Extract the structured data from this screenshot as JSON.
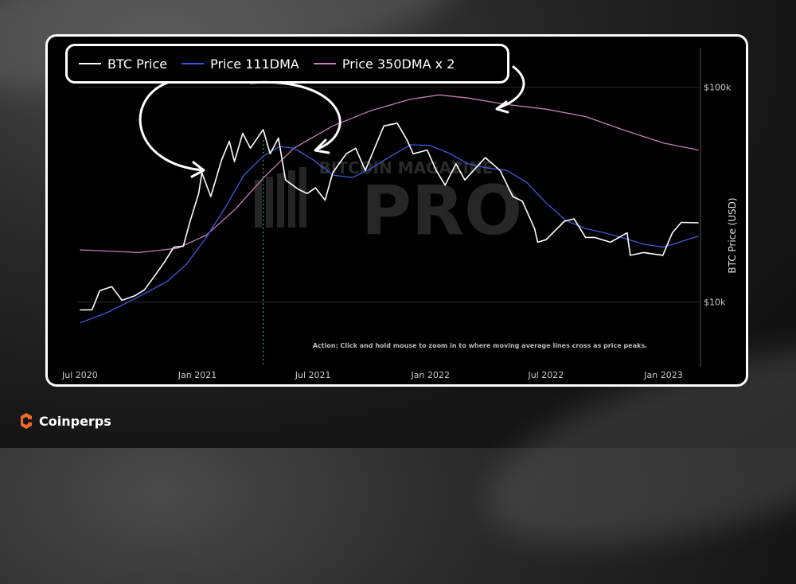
{
  "brand": {
    "name": "Coinperps",
    "color": "#f26a2b"
  },
  "legend": [
    {
      "label": "BTC Price",
      "color": "#ffffff"
    },
    {
      "label": "Price 111DMA",
      "color": "#3b5bdb"
    },
    {
      "label": "Price 350DMA x 2",
      "color": "#c77dba"
    }
  ],
  "watermark": {
    "line1": "BITCOIN MAGAZINE",
    "line2": "PRO"
  },
  "annotation": "Action: Click and hold mouse to zoom in to where moving average lines cross as price peaks.",
  "chart_data": {
    "type": "line",
    "title": "",
    "xlabel": "",
    "ylabel": "BTC Price (USD)",
    "y_scale": "log",
    "ylim": [
      5000,
      150000
    ],
    "xlim": [
      "2020-06-28",
      "2023-02-28"
    ],
    "x_ticks": [
      "Jul 2020",
      "Jan 2021",
      "Jul 2021",
      "Jan 2022",
      "Jul 2022",
      "Jan 2023"
    ],
    "y_ticks": [
      "$10k",
      "$100k"
    ],
    "grid": true,
    "marker_date": "2021-04-14",
    "series": [
      {
        "name": "BTC Price",
        "color": "#ffffff",
        "points": [
          [
            "2020-07-01",
            9200
          ],
          [
            "2020-07-20",
            9200
          ],
          [
            "2020-08-01",
            11300
          ],
          [
            "2020-08-20",
            11800
          ],
          [
            "2020-09-05",
            10200
          ],
          [
            "2020-09-25",
            10700
          ],
          [
            "2020-10-10",
            11400
          ],
          [
            "2020-10-25",
            13100
          ],
          [
            "2020-11-10",
            15300
          ],
          [
            "2020-11-25",
            18000
          ],
          [
            "2020-12-10",
            18200
          ],
          [
            "2020-12-20",
            23500
          ],
          [
            "2021-01-03",
            32000
          ],
          [
            "2021-01-08",
            40000
          ],
          [
            "2021-01-22",
            31000
          ],
          [
            "2021-02-08",
            46000
          ],
          [
            "2021-02-20",
            56000
          ],
          [
            "2021-02-28",
            45000
          ],
          [
            "2021-03-13",
            61000
          ],
          [
            "2021-03-25",
            52000
          ],
          [
            "2021-04-14",
            63500
          ],
          [
            "2021-04-25",
            49000
          ],
          [
            "2021-05-08",
            58000
          ],
          [
            "2021-05-19",
            37000
          ],
          [
            "2021-06-08",
            33500
          ],
          [
            "2021-06-22",
            32000
          ],
          [
            "2021-07-05",
            34000
          ],
          [
            "2021-07-20",
            29800
          ],
          [
            "2021-08-01",
            40000
          ],
          [
            "2021-08-22",
            49000
          ],
          [
            "2021-09-06",
            52000
          ],
          [
            "2021-09-21",
            41000
          ],
          [
            "2021-10-10",
            56000
          ],
          [
            "2021-10-20",
            66000
          ],
          [
            "2021-11-10",
            68000
          ],
          [
            "2021-11-25",
            57000
          ],
          [
            "2021-12-05",
            49000
          ],
          [
            "2021-12-27",
            51000
          ],
          [
            "2022-01-10",
            41000
          ],
          [
            "2022-01-24",
            35000
          ],
          [
            "2022-02-10",
            44000
          ],
          [
            "2022-02-24",
            37000
          ],
          [
            "2022-03-28",
            47000
          ],
          [
            "2022-04-20",
            41000
          ],
          [
            "2022-05-10",
            31000
          ],
          [
            "2022-05-25",
            29500
          ],
          [
            "2022-06-13",
            22000
          ],
          [
            "2022-06-18",
            19000
          ],
          [
            "2022-07-01",
            19500
          ],
          [
            "2022-07-30",
            23800
          ],
          [
            "2022-08-14",
            24400
          ],
          [
            "2022-09-01",
            20000
          ],
          [
            "2022-09-15",
            20000
          ],
          [
            "2022-10-10",
            19000
          ],
          [
            "2022-11-05",
            21000
          ],
          [
            "2022-11-10",
            16500
          ],
          [
            "2022-12-01",
            17000
          ],
          [
            "2022-12-31",
            16500
          ],
          [
            "2023-01-15",
            21000
          ],
          [
            "2023-01-29",
            23500
          ],
          [
            "2023-02-25",
            23400
          ]
        ]
      },
      {
        "name": "Price 111DMA",
        "color": "#3b5bdb",
        "points": [
          [
            "2020-07-01",
            8000
          ],
          [
            "2020-08-15",
            9000
          ],
          [
            "2020-10-01",
            10600
          ],
          [
            "2020-11-15",
            12500
          ],
          [
            "2020-12-15",
            15000
          ],
          [
            "2021-01-15",
            20000
          ],
          [
            "2021-02-15",
            28000
          ],
          [
            "2021-03-15",
            39000
          ],
          [
            "2021-04-15",
            48000
          ],
          [
            "2021-05-10",
            53000
          ],
          [
            "2021-06-01",
            52000
          ],
          [
            "2021-07-01",
            46000
          ],
          [
            "2021-08-01",
            39000
          ],
          [
            "2021-09-01",
            38000
          ],
          [
            "2021-10-01",
            42000
          ],
          [
            "2021-11-01",
            48000
          ],
          [
            "2021-12-01",
            54000
          ],
          [
            "2022-01-01",
            53500
          ],
          [
            "2022-02-01",
            49000
          ],
          [
            "2022-03-01",
            44000
          ],
          [
            "2022-04-01",
            42000
          ],
          [
            "2022-05-01",
            41000
          ],
          [
            "2022-06-01",
            36000
          ],
          [
            "2022-07-01",
            29000
          ],
          [
            "2022-08-01",
            24000
          ],
          [
            "2022-09-01",
            22000
          ],
          [
            "2022-10-01",
            21000
          ],
          [
            "2022-11-01",
            19800
          ],
          [
            "2022-12-01",
            18600
          ],
          [
            "2023-01-01",
            18000
          ],
          [
            "2023-02-25",
            20300
          ]
        ]
      },
      {
        "name": "Price 350DMA x 2",
        "color": "#c77dba",
        "points": [
          [
            "2020-07-01",
            17500
          ],
          [
            "2020-10-01",
            17000
          ],
          [
            "2020-12-01",
            17800
          ],
          [
            "2021-01-15",
            20500
          ],
          [
            "2021-03-01",
            27000
          ],
          [
            "2021-04-15",
            38000
          ],
          [
            "2021-06-01",
            52000
          ],
          [
            "2021-08-01",
            66000
          ],
          [
            "2021-10-01",
            78000
          ],
          [
            "2021-12-01",
            88000
          ],
          [
            "2022-01-15",
            92000
          ],
          [
            "2022-03-01",
            89000
          ],
          [
            "2022-05-01",
            83000
          ],
          [
            "2022-07-01",
            79000
          ],
          [
            "2022-09-01",
            73000
          ],
          [
            "2022-11-01",
            63000
          ],
          [
            "2023-01-01",
            55000
          ],
          [
            "2023-02-25",
            51000
          ]
        ]
      }
    ]
  }
}
